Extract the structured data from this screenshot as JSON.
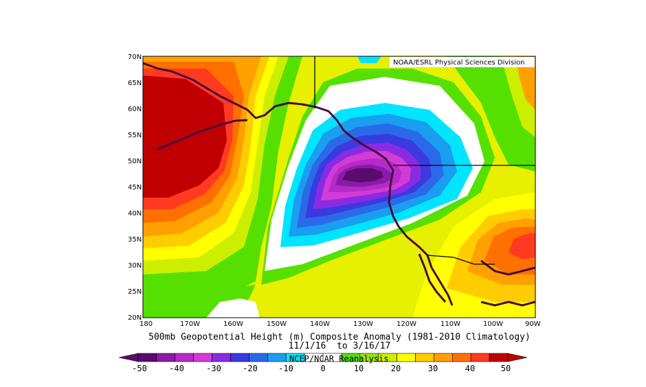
{
  "map": {
    "type": "contour_map",
    "credit": "NOAA/ESRL Physical Sciences Division",
    "title_line1": "500mb Geopotential Height (m) Composite Anomaly (1981-2010 Climatology)",
    "title_line2": "11/1/16  to 3/16/17",
    "source_label": "NCEP/NCAR Reanalysis",
    "lat_ticks": [
      "70N",
      "65N",
      "60N",
      "55N",
      "50N",
      "45N",
      "40N",
      "35N",
      "30N",
      "25N",
      "20N"
    ],
    "lon_ticks": [
      "180",
      "170W",
      "160W",
      "150W",
      "140W",
      "130W",
      "120W",
      "110W",
      "100W",
      "90W"
    ],
    "lat_range": [
      20,
      70
    ],
    "lon_range": [
      -180,
      -90
    ],
    "colorbar": {
      "labels": [
        "-50",
        "-40",
        "-30",
        "-20",
        "-10",
        "0",
        "10",
        "20",
        "30",
        "40",
        "50"
      ],
      "levels": [
        -50,
        -45,
        -40,
        -35,
        -30,
        -25,
        -20,
        -15,
        -10,
        -5,
        0,
        5,
        10,
        15,
        20,
        25,
        30,
        35,
        40,
        45,
        50
      ],
      "colors": [
        "#5a0c6e",
        "#8c1aa8",
        "#b52ac8",
        "#d43bd6",
        "#8a2be2",
        "#3a3ae0",
        "#2a6ae8",
        "#1a9ef0",
        "#00e5ff",
        "#ffffff",
        "#ffffff",
        "#55e000",
        "#99e600",
        "#ccee00",
        "#ffff00",
        "#ffcc00",
        "#ffa000",
        "#ff7000",
        "#ff3a20",
        "#c00000"
      ]
    },
    "features": [
      {
        "name": "ridge over Bering Sea / North Pacific",
        "anomaly_max": 50
      },
      {
        "name": "trough off Pacific Northwest coast",
        "anomaly_min": -50
      },
      {
        "name": "ridge over southern Plains",
        "anomaly_max": 45
      }
    ],
    "colors": {
      "frame": "#000000",
      "coastline": "#4a0a3c",
      "border": "#000000"
    }
  }
}
